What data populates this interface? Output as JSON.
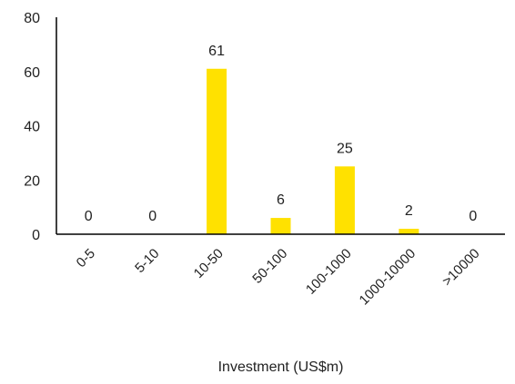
{
  "chart_data": {
    "type": "bar",
    "title": "",
    "xlabel": "Investment (US$m)",
    "ylabel": "",
    "categories": [
      "0-5",
      "5-10",
      "10-50",
      "50-100",
      "100-1000",
      "1000-10000",
      ">10000"
    ],
    "values": [
      0,
      0,
      61,
      6,
      25,
      2,
      0
    ],
    "data_labels": [
      "0",
      "0",
      "61",
      "6",
      "25",
      "2",
      "0"
    ],
    "ylim": [
      0,
      80
    ],
    "yticks": [
      0,
      20,
      40,
      60,
      80
    ],
    "ytick_labels": [
      "0",
      "20",
      "40",
      "60",
      "80"
    ],
    "grid": false,
    "legend": "none",
    "bar_color": "#FFE100",
    "axis_color": "#000000"
  }
}
